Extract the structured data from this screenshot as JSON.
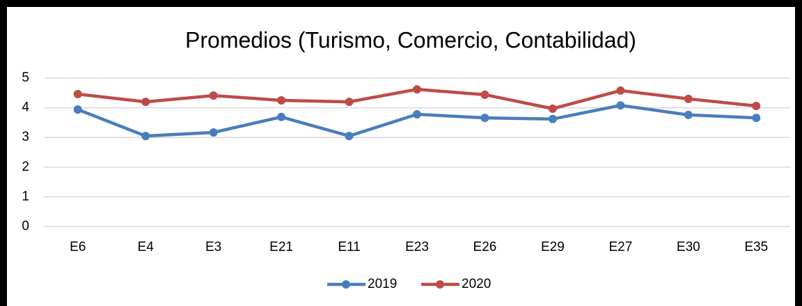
{
  "chart_data": {
    "type": "line",
    "title": "Promedios (Turismo, Comercio, Contabilidad)",
    "categories": [
      "E6",
      "E4",
      "E3",
      "E21",
      "E11",
      "E23",
      "E26",
      "E29",
      "E27",
      "E30",
      "E35"
    ],
    "series": [
      {
        "name": "2019",
        "color": "#4a7ebb",
        "values": [
          3.94,
          3.05,
          3.17,
          3.69,
          3.05,
          3.78,
          3.66,
          3.62,
          4.08,
          3.76,
          3.66
        ]
      },
      {
        "name": "2020",
        "color": "#be4b48",
        "values": [
          4.46,
          4.2,
          4.41,
          4.25,
          4.2,
          4.62,
          4.44,
          3.97,
          4.58,
          4.3,
          4.06
        ]
      }
    ],
    "ylim": [
      0,
      5
    ],
    "yticks": [
      0,
      1,
      2,
      3,
      4,
      5
    ],
    "grid": true,
    "legend": "bottom"
  }
}
